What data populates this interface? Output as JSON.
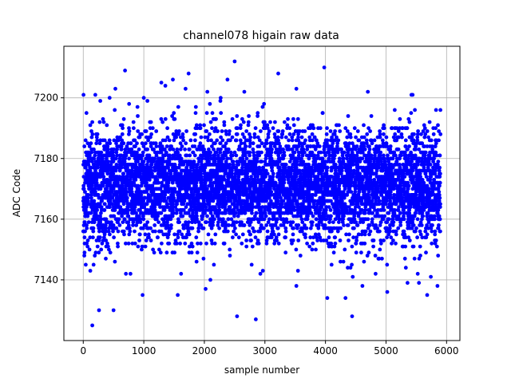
{
  "chart_data": {
    "type": "scatter",
    "title": "channel078 higain raw data",
    "xlabel": "sample number",
    "ylabel": "ADC Code",
    "xlim": [
      -320,
      6220
    ],
    "ylim": [
      7120,
      7217
    ],
    "xticks": [
      0,
      1000,
      2000,
      3000,
      4000,
      5000,
      6000
    ],
    "yticks": [
      7140,
      7160,
      7180,
      7200
    ],
    "grid": true,
    "marker_color": "#0000ff",
    "series": [
      {
        "sample_count": 5900,
        "x_range": [
          0,
          5900
        ],
        "center": 7171,
        "dense_band": [
          7150,
          7192
        ],
        "outliers": [
          [
            5,
            7201
          ],
          [
            150,
            7125
          ],
          [
            200,
            7201
          ],
          [
            260,
            7130
          ],
          [
            500,
            7130
          ],
          [
            530,
            7203
          ],
          [
            690,
            7209
          ],
          [
            1000,
            7200
          ],
          [
            1290,
            7205
          ],
          [
            1480,
            7206
          ],
          [
            1740,
            7208
          ],
          [
            2050,
            7202
          ],
          [
            2500,
            7212
          ],
          [
            2540,
            7128
          ],
          [
            2660,
            7202
          ],
          [
            2850,
            7127
          ],
          [
            3220,
            7208
          ],
          [
            3520,
            7203
          ],
          [
            3980,
            7210
          ],
          [
            4030,
            7134
          ],
          [
            4330,
            7134
          ],
          [
            4440,
            7128
          ],
          [
            4700,
            7202
          ],
          [
            5020,
            7136
          ],
          [
            5420,
            7201
          ],
          [
            5680,
            7135
          ],
          [
            980,
            7135
          ],
          [
            1560,
            7135
          ],
          [
            2020,
            7137
          ],
          [
            3520,
            7138
          ],
          [
            4610,
            7138
          ],
          [
            5850,
            7138
          ]
        ]
      }
    ]
  }
}
